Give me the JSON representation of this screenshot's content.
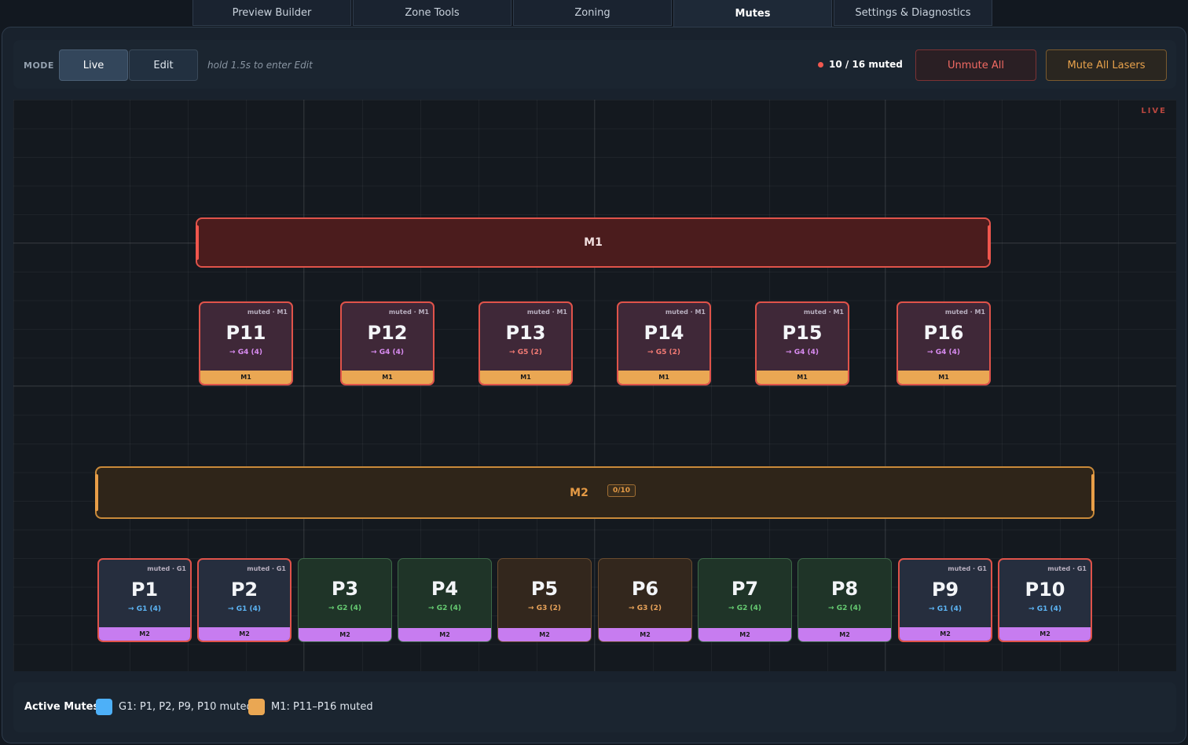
{
  "tabs": [
    {
      "label": "Preview Builder",
      "active": false
    },
    {
      "label": "Zone Tools",
      "active": false
    },
    {
      "label": "Zoning",
      "active": false
    },
    {
      "label": "Mutes",
      "active": true
    },
    {
      "label": "Settings & Diagnostics",
      "active": false
    }
  ],
  "toolbar": {
    "mode_label": "MODE",
    "live_label": "Live",
    "edit_label": "Edit",
    "hint": "hold 1.5s to enter Edit",
    "muted_count": "10 / 16 muted",
    "unmute_all_label": "Unmute All",
    "mute_all_label": "Mute All Lasers"
  },
  "canvas": {
    "live_badge": "LIVE",
    "groups": {
      "m1": {
        "label": "M1"
      },
      "m2": {
        "label": "M2",
        "count": "0/10"
      }
    },
    "top_tiles": [
      {
        "name": "P11",
        "state": "muted · M1",
        "route": "→ G4 (4)",
        "footer": "M1"
      },
      {
        "name": "P12",
        "state": "muted · M1",
        "route": "→ G4 (4)",
        "footer": "M1"
      },
      {
        "name": "P13",
        "state": "muted · M1",
        "route": "→ G5 (2)",
        "footer": "M1"
      },
      {
        "name": "P14",
        "state": "muted · M1",
        "route": "→ G5 (2)",
        "footer": "M1"
      },
      {
        "name": "P15",
        "state": "muted · M1",
        "route": "→ G4 (4)",
        "footer": "M1"
      },
      {
        "name": "P16",
        "state": "muted · M1",
        "route": "→ G4 (4)",
        "footer": "M1"
      }
    ],
    "bottom_tiles": [
      {
        "name": "P1",
        "state": "muted · G1",
        "route": "→ G1 (4)",
        "footer": "M2"
      },
      {
        "name": "P2",
        "state": "muted · G1",
        "route": "→ G1 (4)",
        "footer": "M2"
      },
      {
        "name": "P3",
        "state": "",
        "route": "→ G2 (4)",
        "footer": "M2"
      },
      {
        "name": "P4",
        "state": "",
        "route": "→ G2 (4)",
        "footer": "M2"
      },
      {
        "name": "P5",
        "state": "",
        "route": "→ G3 (2)",
        "footer": "M2"
      },
      {
        "name": "P6",
        "state": "",
        "route": "→ G3 (2)",
        "footer": "M2"
      },
      {
        "name": "P7",
        "state": "",
        "route": "→ G2 (4)",
        "footer": "M2"
      },
      {
        "name": "P8",
        "state": "",
        "route": "→ G2 (4)",
        "footer": "M2"
      },
      {
        "name": "P9",
        "state": "muted · G1",
        "route": "→ G1 (4)",
        "footer": "M2"
      },
      {
        "name": "P10",
        "state": "muted · G1",
        "route": "→ G1 (4)",
        "footer": "M2"
      }
    ]
  },
  "legend": {
    "title": "Active Mutes",
    "items": [
      {
        "color": "#4db0f8",
        "text": "G1: P1, P2, P9, P10 muted"
      },
      {
        "color": "#eaa753",
        "text": "M1: P11–P16 muted"
      }
    ]
  },
  "colors": {
    "accent_red": "#e0534a",
    "accent_orange": "#e89e48",
    "footer_m2": "#c77cf0"
  }
}
